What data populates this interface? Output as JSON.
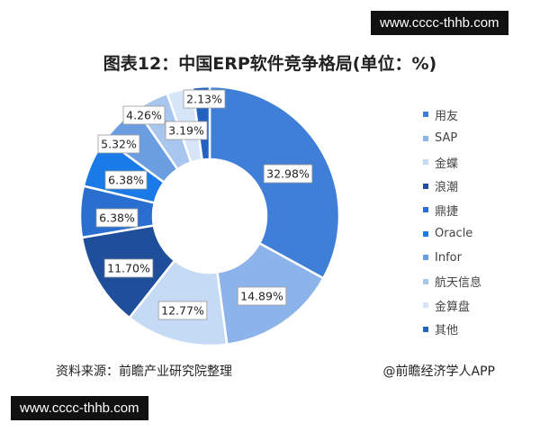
{
  "watermark": "www.cccc-thhb.com",
  "chart_data": {
    "type": "pie",
    "donut": true,
    "title": "图表12：中国ERP软件竞争格局(单位：%)",
    "categories": [
      "用友",
      "SAP",
      "金蝶",
      "浪潮",
      "鼎捷",
      "Oracle",
      "Infor",
      "航天信息",
      "金算盘",
      "其他"
    ],
    "values": [
      32.98,
      14.89,
      12.77,
      11.7,
      6.38,
      6.38,
      5.32,
      4.26,
      3.19,
      2.13
    ],
    "labels": [
      "32.98%",
      "14.89%",
      "12.77%",
      "11.70%",
      "6.38%",
      "6.38%",
      "5.32%",
      "4.26%",
      "3.19%",
      "2.13%"
    ],
    "colors": [
      "#3f7fd8",
      "#8cb4ea",
      "#c5daf5",
      "#1f4e9a",
      "#2a6fd0",
      "#1a7ae8",
      "#6a9ee0",
      "#a8c6ee",
      "#d6e5f8",
      "#2462c0"
    ],
    "legend_position": "right"
  },
  "footer": {
    "source": "资料来源：前瞻产业研究院整理",
    "brand": "@前瞻经济学人APP"
  }
}
